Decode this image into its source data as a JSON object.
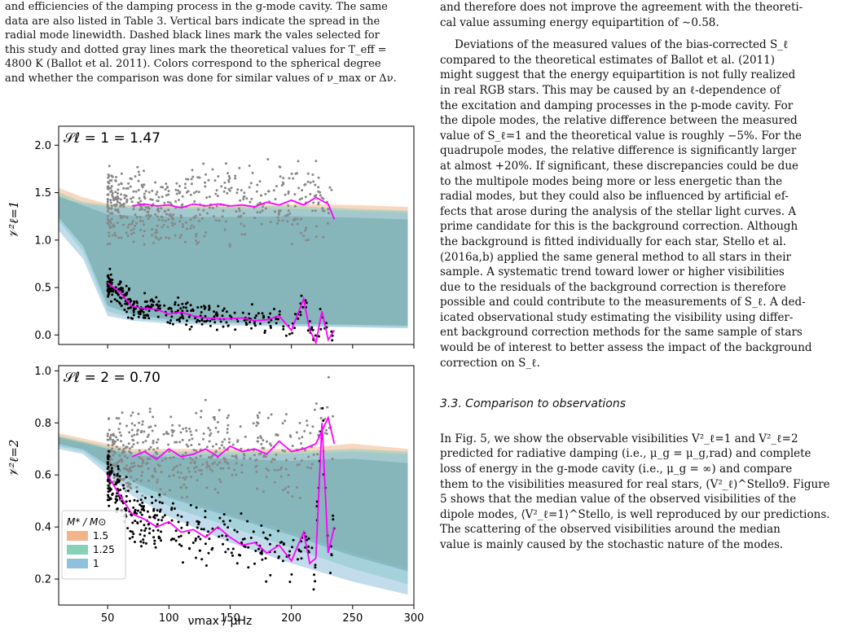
{
  "left": {
    "caption": [
      "and efficiencies of the damping process in the g-mode cavity. The same",
      "data are also listed in Table 3. Vertical bars indicate the spread in the",
      "radial mode linewidth. Dashed black lines mark the vales selected for",
      "this study and dotted gray lines mark the theoretical values for T_eff =",
      "4800 K (Ballot et al. 2011). Colors correspond to the spherical degree",
      "and whether the comparison was done for similar values of ν_max or Δν."
    ]
  },
  "right": {
    "p1": [
      "and therefore does not improve the agreement with the theoreti-",
      "cal value assuming energy equipartition of ∼0.58."
    ],
    "p2": [
      "Deviations of the measured values of the bias-corrected S_ℓ",
      "compared to the theoretical estimates of Ballot et al. (2011)",
      "might suggest that the energy equipartition is not fully realized",
      "in real RGB stars. This may be caused by an ℓ-dependence of",
      "the excitation and damping processes in the p-mode cavity. For",
      "the dipole modes, the relative difference between the measured",
      "value of S_ℓ=1 and the theoretical value is roughly −5%. For the",
      "quadrupole modes, the relative difference is significantly larger",
      "at almost +20%. If significant, these discrepancies could be due",
      "to the multipole modes being more or less energetic than the",
      "radial modes, but they could also be influenced by artificial ef-",
      "fects that arose during the analysis of the stellar light curves. A",
      "prime candidate for this is the background correction. Although",
      "the background is fitted individually for each star, Stello et al.",
      "(2016a,b) applied the same general method to all stars in their",
      "sample. A systematic trend toward lower or higher visibilities",
      "due to the residuals of the background correction is therefore",
      "possible and could contribute to the measurements of S_ℓ. A ded-",
      "icated observational study estimating the visibility using differ-",
      "ent background correction methods for the same sample of stars",
      "would be of interest to better assess the impact of the background",
      "correction on S_ℓ."
    ],
    "section": "3.3. Comparison to observations",
    "p3": [
      "In Fig. 5, we show the observable visibilities V²_ℓ=1 and V²_ℓ=2",
      "predicted for radiative damping (i.e., μ_g = μ_g,rad) and complete",
      "loss of energy in the g-mode cavity (i.e., μ_g = ∞) and compare",
      "them to the visibilities measured for real stars, (V²_ℓ)^Stello9. Figure",
      "5 shows that the median value of the observed visibilities of the",
      "dipole modes, ⟨V²_ℓ=1⟩^Stello, is well reproduced by our predictions.",
      "The scattering of the observed visibilities around the median",
      "value is mainly caused by the stochastic nature of the modes."
    ]
  },
  "figure": {
    "top_annotation": "𝒮ℓ = 1 = 1.47",
    "bottom_annotation": "𝒮ℓ = 2 = 0.70",
    "top_ylabel": "𝒱²ℓ=1",
    "bottom_ylabel": "𝒱²ℓ=2",
    "xlabel": "νmax / μHz",
    "legend_title": "M* / M⊙",
    "legend_items": [
      "1.5",
      "1.25",
      "1"
    ]
  },
  "chart_data": [
    {
      "type": "scatter",
      "title": "",
      "annotation": "𝒮ℓ = 1 = 1.47",
      "xlabel": "",
      "ylabel": "𝒱²ℓ=1",
      "xlim": [
        10,
        300
      ],
      "ylim": [
        -0.1,
        2.2
      ],
      "x_ticks": [
        50,
        100,
        150,
        200,
        250,
        300
      ],
      "y_ticks": [
        0.0,
        0.5,
        1.0,
        1.5,
        2.0
      ],
      "band_colors": {
        "1.5": "#f2b48a",
        "1.25": "#86d1b8",
        "1": "#8fc0dc",
        "overlap": "#2e7d83"
      },
      "series": [
        {
          "name": "1.5",
          "x": [
            10,
            30,
            50,
            70,
            100,
            150,
            200,
            250,
            295
          ],
          "upper": [
            1.55,
            1.45,
            1.38,
            1.37,
            1.36,
            1.36,
            1.38,
            1.37,
            1.35
          ],
          "lower": [
            1.25,
            0.95,
            0.32,
            0.22,
            0.17,
            0.14,
            0.12,
            0.11,
            0.1
          ]
        },
        {
          "name": "1.25",
          "x": [
            10,
            30,
            50,
            70,
            100,
            150,
            200,
            250,
            295
          ],
          "upper": [
            1.5,
            1.4,
            1.37,
            1.36,
            1.35,
            1.35,
            1.36,
            1.33,
            1.31
          ],
          "lower": [
            1.2,
            0.88,
            0.25,
            0.18,
            0.14,
            0.12,
            0.1,
            0.09,
            0.08
          ]
        },
        {
          "name": "1",
          "x": [
            10,
            30,
            50,
            70,
            100,
            150,
            200,
            250,
            295
          ],
          "upper": [
            1.45,
            1.38,
            1.35,
            1.34,
            1.33,
            1.33,
            1.33,
            1.31,
            1.29
          ],
          "lower": [
            1.1,
            0.8,
            0.2,
            0.15,
            0.12,
            0.1,
            0.09,
            0.08,
            0.07
          ]
        }
      ],
      "median_high": {
        "x": [
          70,
          80,
          90,
          100,
          110,
          120,
          130,
          140,
          150,
          160,
          170,
          180,
          190,
          200,
          210,
          220,
          230,
          235
        ],
        "y": [
          1.36,
          1.38,
          1.36,
          1.37,
          1.34,
          1.38,
          1.36,
          1.38,
          1.36,
          1.37,
          1.35,
          1.4,
          1.37,
          1.42,
          1.37,
          1.45,
          1.38,
          1.22
        ]
      },
      "median_low": {
        "x": [
          50,
          60,
          70,
          80,
          90,
          100,
          110,
          120,
          130,
          140,
          150,
          160,
          170,
          180,
          190,
          200,
          210,
          215,
          220,
          225,
          230,
          235
        ],
        "y": [
          0.55,
          0.45,
          0.3,
          0.28,
          0.27,
          0.22,
          0.24,
          0.2,
          0.18,
          0.17,
          0.17,
          0.18,
          0.15,
          0.16,
          0.2,
          0.05,
          0.38,
          0.05,
          -0.08,
          0.25,
          -0.05,
          0.05
        ]
      }
    },
    {
      "type": "scatter",
      "title": "",
      "annotation": "𝒮ℓ = 2 = 0.70",
      "xlabel": "νmax / μHz",
      "ylabel": "𝒱²ℓ=2",
      "xlim": [
        10,
        300
      ],
      "ylim": [
        0.1,
        1.02
      ],
      "x_ticks": [
        50,
        100,
        150,
        200,
        250,
        300
      ],
      "y_ticks": [
        0.2,
        0.4,
        0.6,
        0.8,
        1.0
      ],
      "legend": {
        "title": "M* / M⊙",
        "entries": [
          "1.5",
          "1.25",
          "1"
        ],
        "position": "lower-left"
      },
      "series": [
        {
          "name": "1.5",
          "x": [
            10,
            30,
            50,
            70,
            100,
            150,
            200,
            250,
            295
          ],
          "upper": [
            0.76,
            0.74,
            0.72,
            0.7,
            0.7,
            0.7,
            0.7,
            0.72,
            0.7
          ],
          "lower": [
            0.72,
            0.7,
            0.64,
            0.58,
            0.52,
            0.45,
            0.38,
            0.3,
            0.24
          ]
        },
        {
          "name": "1.25",
          "x": [
            10,
            30,
            50,
            70,
            100,
            150,
            200,
            250,
            295
          ],
          "upper": [
            0.75,
            0.73,
            0.71,
            0.69,
            0.69,
            0.69,
            0.69,
            0.7,
            0.69
          ],
          "lower": [
            0.71,
            0.69,
            0.62,
            0.55,
            0.48,
            0.4,
            0.32,
            0.24,
            0.18
          ]
        },
        {
          "name": "1",
          "x": [
            10,
            30,
            50,
            70,
            100,
            150,
            200,
            250,
            295
          ],
          "upper": [
            0.74,
            0.72,
            0.7,
            0.68,
            0.68,
            0.68,
            0.68,
            0.69,
            0.68
          ],
          "lower": [
            0.7,
            0.68,
            0.6,
            0.52,
            0.44,
            0.34,
            0.26,
            0.19,
            0.14
          ]
        }
      ],
      "median_high": {
        "x": [
          70,
          80,
          90,
          100,
          110,
          120,
          130,
          140,
          150,
          160,
          170,
          180,
          190,
          200,
          210,
          220,
          230,
          235
        ],
        "y": [
          0.67,
          0.69,
          0.66,
          0.7,
          0.67,
          0.68,
          0.7,
          0.67,
          0.71,
          0.69,
          0.7,
          0.68,
          0.73,
          0.69,
          0.7,
          0.72,
          0.82,
          0.72
        ]
      },
      "median_low": {
        "x": [
          50,
          60,
          70,
          80,
          90,
          100,
          110,
          120,
          130,
          140,
          150,
          160,
          170,
          180,
          190,
          200,
          210,
          215,
          220,
          225,
          230,
          235
        ],
        "y": [
          0.6,
          0.52,
          0.45,
          0.43,
          0.4,
          0.42,
          0.38,
          0.39,
          0.36,
          0.4,
          0.36,
          0.33,
          0.34,
          0.3,
          0.33,
          0.27,
          0.38,
          0.26,
          0.28,
          0.8,
          0.3,
          0.4
        ]
      }
    }
  ]
}
